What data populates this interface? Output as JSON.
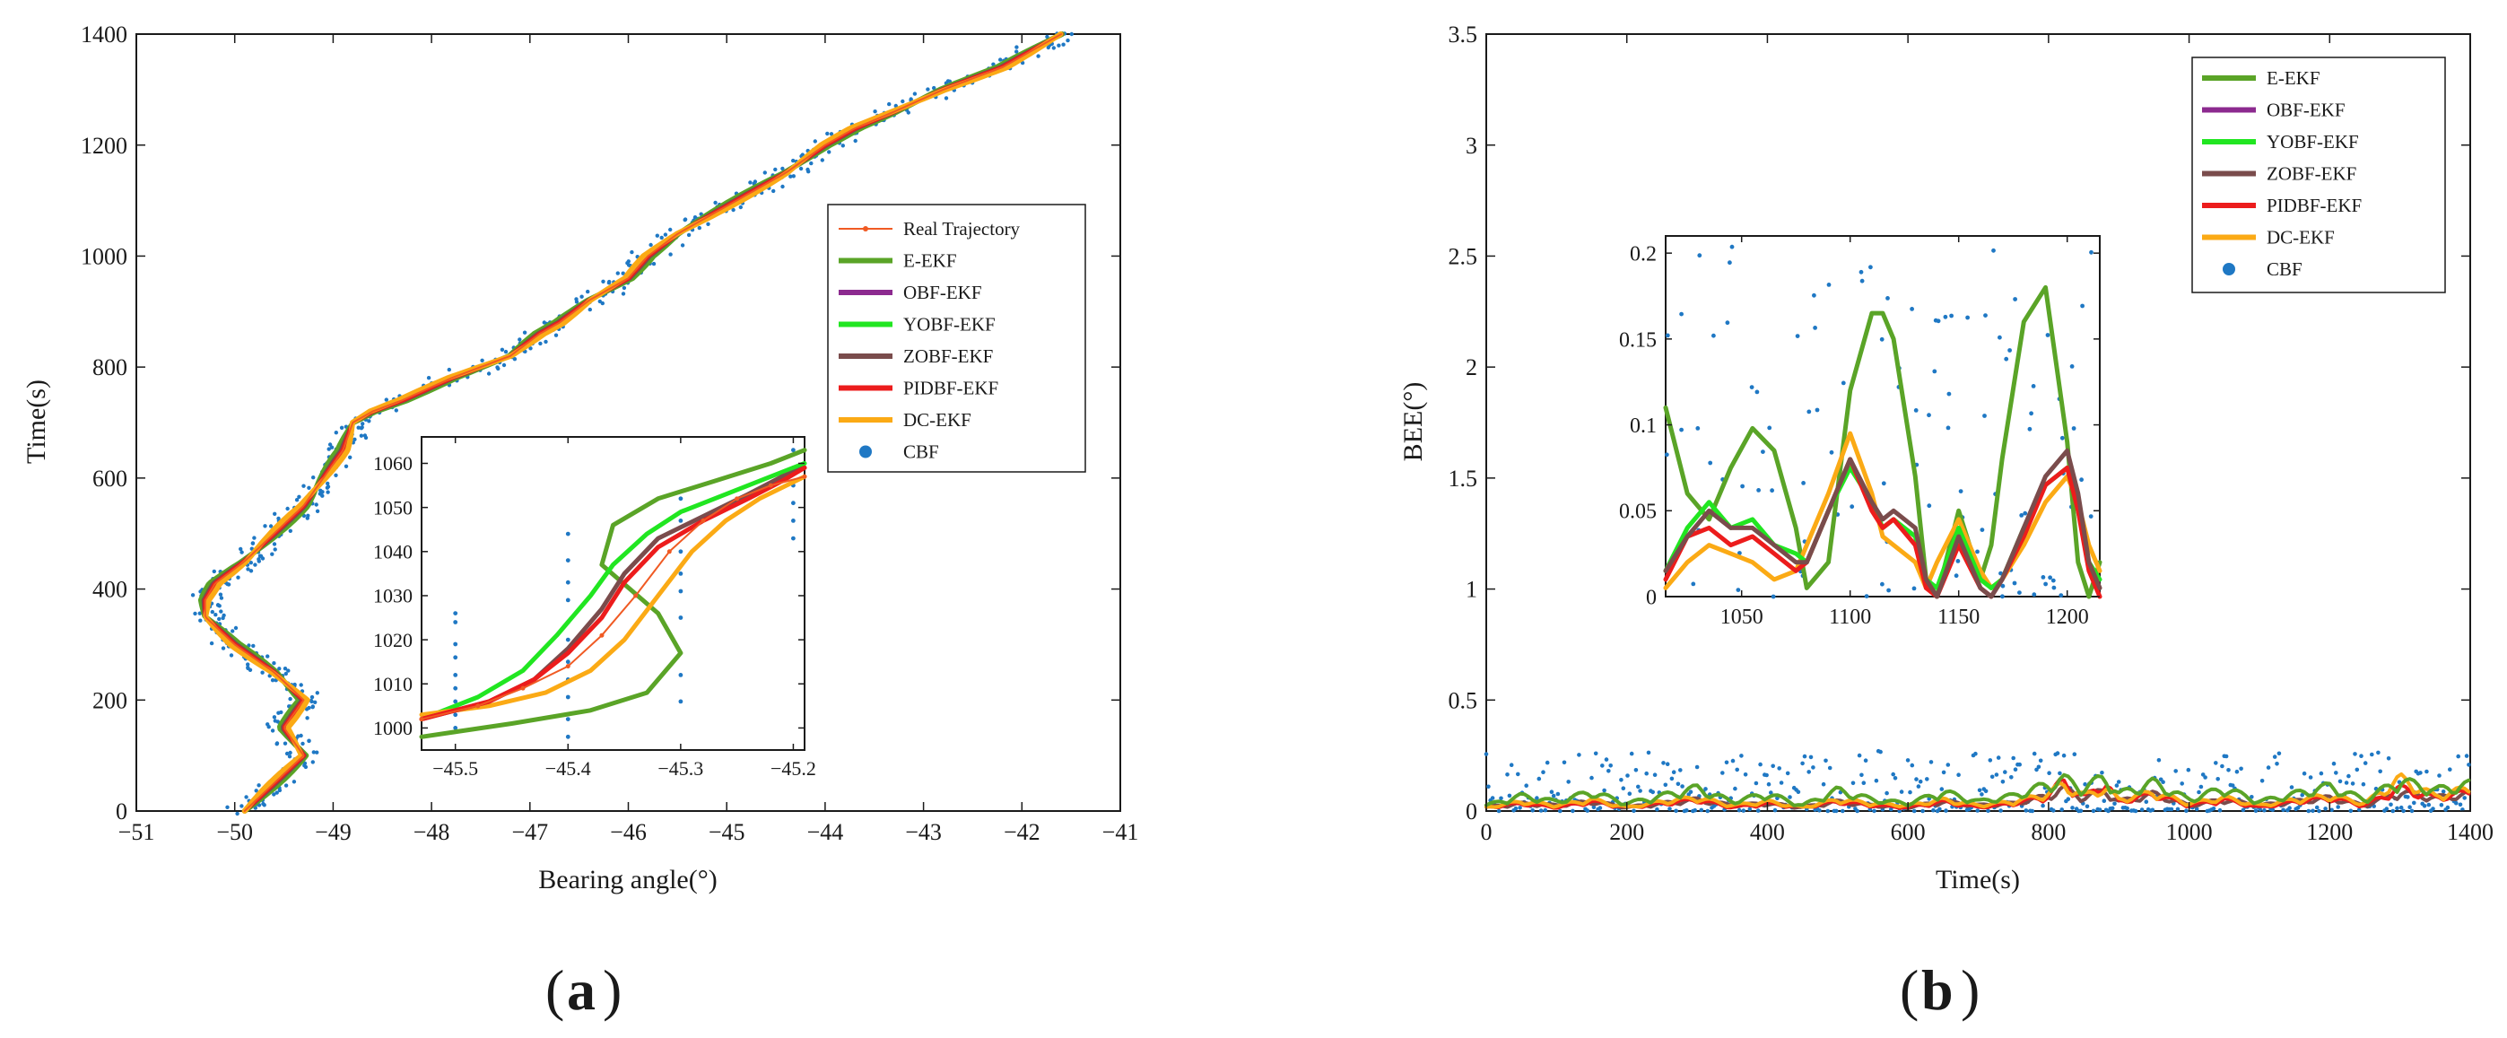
{
  "colors": {
    "real": "#f05a23",
    "eekf": "#5aa427",
    "obf": "#8c2a8f",
    "yobf": "#21e621",
    "zobf": "#7a4c4c",
    "pidbf": "#ec1c1c",
    "dc": "#fbaa15",
    "cbf": "#1f78c4"
  },
  "labels": {
    "a": "a",
    "b": "b",
    "paren_open": "(",
    "paren_close": ")"
  },
  "chart_data": [
    {
      "id": "a",
      "type": "line",
      "xlabel": "Bearing angle(°)",
      "ylabel": "Time(s)",
      "xlim": [
        -51,
        -41
      ],
      "ylim": [
        0,
        1400
      ],
      "xticks": [
        -51,
        -50,
        -49,
        -48,
        -47,
        -46,
        -45,
        -44,
        -43,
        -42,
        -41
      ],
      "yticks": [
        0,
        200,
        400,
        600,
        800,
        1000,
        1200,
        1400
      ],
      "legend": [
        "Real Trajectory",
        "E-EKF",
        "OBF-EKF",
        "YOBF-EKF",
        "ZOBF-EKF",
        "PIDBF-EKF",
        "DC-EKF",
        "CBF"
      ],
      "trajectory": {
        "t": [
          0,
          50,
          100,
          150,
          200,
          250,
          300,
          350,
          380,
          410,
          450,
          500,
          550,
          600,
          650,
          700,
          720,
          740,
          780,
          820,
          860,
          880,
          920,
          960,
          1000,
          1040,
          1060,
          1100,
          1150,
          1200,
          1230,
          1260,
          1300,
          1340,
          1400
        ],
        "x": [
          -49.9,
          -49.6,
          -49.3,
          -49.5,
          -49.3,
          -49.6,
          -50.0,
          -50.3,
          -50.3,
          -50.2,
          -49.9,
          -49.6,
          -49.3,
          -49.1,
          -48.9,
          -48.8,
          -48.6,
          -48.3,
          -47.8,
          -47.2,
          -46.9,
          -46.7,
          -46.4,
          -46.0,
          -45.8,
          -45.5,
          -45.3,
          -44.9,
          -44.4,
          -44.0,
          -43.7,
          -43.3,
          -42.8,
          -42.2,
          -41.6
        ]
      },
      "inset": {
        "xlim": [
          -45.53,
          -45.19
        ],
        "ylim": [
          995,
          1066
        ],
        "xticks": [
          -45.5,
          -45.4,
          -45.3,
          -45.2
        ],
        "yticks": [
          1000,
          1010,
          1020,
          1030,
          1040,
          1050,
          1060
        ],
        "series": [
          {
            "name": "Real Trajectory",
            "x": [
              -45.53,
              -45.48,
              -45.44,
              -45.4,
              -45.37,
              -45.34,
              -45.31,
              -45.28,
              -45.25,
              -45.22,
              -45.19
            ],
            "y": [
              1002,
              1005,
              1009,
              1014,
              1021,
              1030,
              1040,
              1047,
              1052,
              1055,
              1057
            ]
          },
          {
            "name": "E-EKF",
            "x": [
              -45.53,
              -45.45,
              -45.38,
              -45.33,
              -45.3,
              -45.32,
              -45.37,
              -45.36,
              -45.32,
              -45.27,
              -45.22,
              -45.19
            ],
            "y": [
              998,
              1001,
              1004,
              1008,
              1017,
              1026,
              1037,
              1046,
              1052,
              1056,
              1060,
              1063
            ]
          },
          {
            "name": "YOBF-EKF",
            "x": [
              -45.53,
              -45.48,
              -45.44,
              -45.41,
              -45.38,
              -45.36,
              -45.33,
              -45.3,
              -45.26,
              -45.22,
              -45.19
            ],
            "y": [
              1002,
              1007,
              1013,
              1021,
              1030,
              1037,
              1044,
              1049,
              1053,
              1057,
              1060
            ]
          },
          {
            "name": "ZOBF-EKF",
            "x": [
              -45.53,
              -45.47,
              -45.43,
              -45.4,
              -45.37,
              -45.35,
              -45.32,
              -45.28,
              -45.24,
              -45.21,
              -45.19
            ],
            "y": [
              1002,
              1006,
              1011,
              1018,
              1027,
              1035,
              1043,
              1048,
              1053,
              1057,
              1059
            ]
          },
          {
            "name": "PIDBF-EKF",
            "x": [
              -45.53,
              -45.47,
              -45.43,
              -45.4,
              -45.37,
              -45.35,
              -45.32,
              -45.28,
              -45.24,
              -45.21,
              -45.19
            ],
            "y": [
              1002,
              1006,
              1011,
              1017,
              1025,
              1033,
              1041,
              1047,
              1052,
              1056,
              1059
            ]
          },
          {
            "name": "DC-EKF",
            "x": [
              -45.53,
              -45.47,
              -45.42,
              -45.38,
              -45.35,
              -45.32,
              -45.29,
              -45.26,
              -45.23,
              -45.19
            ],
            "y": [
              1003,
              1005,
              1008,
              1013,
              1020,
              1030,
              1040,
              1047,
              1052,
              1057
            ]
          }
        ],
        "cbf_columns": [
          {
            "x": -45.5,
            "y": [
              1000,
              1003,
              1006,
              1009,
              1012,
              1016,
              1019,
              1024,
              1026
            ]
          },
          {
            "x": -45.4,
            "y": [
              998,
              1002,
              1007,
              1011,
              1015,
              1020,
              1024,
              1029,
              1033,
              1038,
              1044
            ]
          },
          {
            "x": -45.3,
            "y": [
              1006,
              1012,
              1025,
              1031,
              1035,
              1040,
              1047,
              1052
            ]
          },
          {
            "x": -45.2,
            "y": [
              1043,
              1047,
              1051,
              1055,
              1059,
              1063
            ]
          }
        ]
      }
    },
    {
      "id": "b",
      "type": "line",
      "xlabel": "Time(s)",
      "ylabel": "BEE(°)",
      "xlim": [
        0,
        1400
      ],
      "ylim": [
        0,
        3.5
      ],
      "xticks": [
        0,
        200,
        400,
        600,
        800,
        1000,
        1200,
        1400
      ],
      "yticks": [
        0,
        0.5,
        1,
        1.5,
        2,
        2.5,
        3,
        3.5
      ],
      "legend": [
        "E-EKF",
        "OBF-EKF",
        "YOBF-EKF",
        "ZOBF-EKF",
        "PIDBF-EKF",
        "DC-EKF",
        "CBF"
      ],
      "main_series": {
        "t": [
          0,
          50,
          100,
          150,
          200,
          250,
          300,
          350,
          400,
          450,
          500,
          550,
          600,
          650,
          700,
          750,
          800,
          820,
          850,
          880,
          900,
          950,
          1000,
          1050,
          1100,
          1150,
          1200,
          1250,
          1300,
          1350,
          1400
        ],
        "e_ekf": [
          0.03,
          0.08,
          0.05,
          0.1,
          0.04,
          0.08,
          0.12,
          0.05,
          0.09,
          0.03,
          0.11,
          0.06,
          0.04,
          0.1,
          0.05,
          0.08,
          0.14,
          0.17,
          0.12,
          0.18,
          0.09,
          0.15,
          0.06,
          0.12,
          0.05,
          0.09,
          0.13,
          0.06,
          0.16,
          0.11,
          0.14
        ],
        "dc_ekf": [
          0.02,
          0.05,
          0.03,
          0.06,
          0.02,
          0.05,
          0.07,
          0.03,
          0.05,
          0.02,
          0.06,
          0.04,
          0.03,
          0.06,
          0.03,
          0.05,
          0.09,
          0.14,
          0.08,
          0.12,
          0.06,
          0.1,
          0.04,
          0.07,
          0.03,
          0.06,
          0.08,
          0.04,
          0.17,
          0.08,
          0.12
        ],
        "pidbf_ekf": [
          0.02,
          0.04,
          0.02,
          0.05,
          0.02,
          0.04,
          0.06,
          0.02,
          0.04,
          0.02,
          0.05,
          0.03,
          0.02,
          0.05,
          0.02,
          0.04,
          0.08,
          0.16,
          0.07,
          0.15,
          0.05,
          0.09,
          0.03,
          0.06,
          0.02,
          0.05,
          0.07,
          0.03,
          0.12,
          0.07,
          0.1
        ],
        "zobf_ekf": [
          0.02,
          0.04,
          0.03,
          0.05,
          0.02,
          0.04,
          0.06,
          0.03,
          0.04,
          0.02,
          0.05,
          0.03,
          0.02,
          0.05,
          0.03,
          0.04,
          0.08,
          0.12,
          0.07,
          0.11,
          0.05,
          0.09,
          0.03,
          0.06,
          0.03,
          0.05,
          0.07,
          0.03,
          0.1,
          0.07,
          0.09
        ]
      },
      "inset": {
        "xlim": [
          1015,
          1215
        ],
        "ylim": [
          0,
          0.21
        ],
        "xticks": [
          1050,
          1100,
          1150,
          1200
        ],
        "yticks": [
          0,
          0.05,
          0.1,
          0.15,
          0.2
        ],
        "x": [
          1015,
          1025,
          1035,
          1045,
          1055,
          1065,
          1075,
          1080,
          1090,
          1100,
          1110,
          1115,
          1120,
          1130,
          1135,
          1140,
          1150,
          1160,
          1165,
          1170,
          1180,
          1190,
          1200,
          1205,
          1210,
          1215
        ],
        "series": [
          {
            "name": "E-EKF",
            "y": [
              0.11,
              0.06,
              0.045,
              0.075,
              0.098,
              0.085,
              0.04,
              0.005,
              0.02,
              0.12,
              0.165,
              0.165,
              0.15,
              0.07,
              0.01,
              0.0,
              0.05,
              0.01,
              0.03,
              0.08,
              0.16,
              0.18,
              0.09,
              0.02,
              0.0,
              0.02
            ]
          },
          {
            "name": "YOBF-EKF",
            "y": [
              0.015,
              0.04,
              0.055,
              0.04,
              0.045,
              0.03,
              0.025,
              0.02,
              0.05,
              0.075,
              0.055,
              0.04,
              0.045,
              0.035,
              0.01,
              0.005,
              0.04,
              0.01,
              0.005,
              0.01,
              0.04,
              0.065,
              0.075,
              0.05,
              0.02,
              0.01
            ]
          },
          {
            "name": "ZOBF-EKF",
            "y": [
              0.015,
              0.035,
              0.05,
              0.04,
              0.04,
              0.03,
              0.02,
              0.02,
              0.05,
              0.08,
              0.055,
              0.045,
              0.05,
              0.04,
              0.01,
              0.0,
              0.035,
              0.005,
              0.0,
              0.01,
              0.04,
              0.07,
              0.085,
              0.06,
              0.02,
              0.005
            ]
          },
          {
            "name": "PIDBF-EKF",
            "y": [
              0.01,
              0.035,
              0.04,
              0.03,
              0.035,
              0.025,
              0.015,
              0.02,
              0.05,
              0.08,
              0.05,
              0.04,
              0.045,
              0.03,
              0.005,
              0.0,
              0.03,
              0.005,
              0.0,
              0.01,
              0.035,
              0.065,
              0.075,
              0.05,
              0.015,
              0.0
            ]
          },
          {
            "name": "DC-EKF",
            "y": [
              0.005,
              0.02,
              0.03,
              0.025,
              0.02,
              0.01,
              0.015,
              0.03,
              0.06,
              0.095,
              0.06,
              0.035,
              0.03,
              0.02,
              0.005,
              0.02,
              0.045,
              0.015,
              0.005,
              0.01,
              0.03,
              0.055,
              0.07,
              0.055,
              0.03,
              0.015
            ]
          }
        ]
      }
    }
  ]
}
